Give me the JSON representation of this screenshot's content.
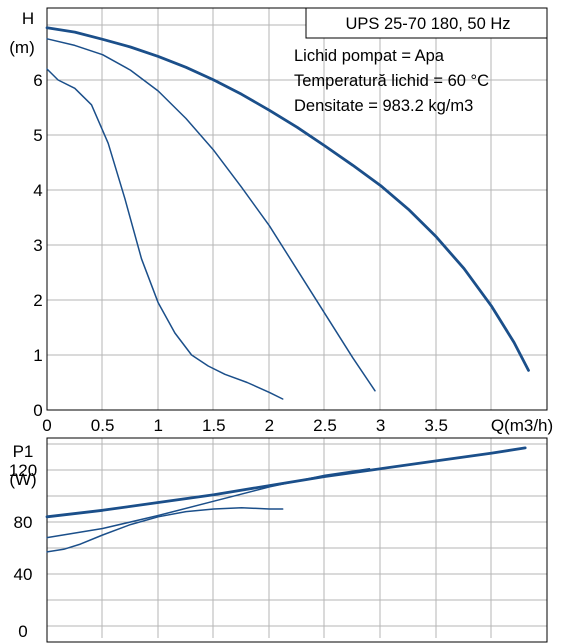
{
  "colors": {
    "curve": "#1b4f8a",
    "grid": "#b5b5b5",
    "frame": "#000000",
    "background": "#ffffff"
  },
  "chart_data": [
    {
      "type": "line",
      "ylabel_line1": "H",
      "ylabel_line2": "(m)",
      "xlabel": "Q(m3/h)",
      "xlim": [
        0,
        4.5
      ],
      "ylim": [
        0,
        7.3
      ],
      "grid": true,
      "x_ticks": [
        {
          "value": 0,
          "label": "0"
        },
        {
          "value": 0.5,
          "label": "0.5"
        },
        {
          "value": 1,
          "label": "1"
        },
        {
          "value": 1.5,
          "label": "1.5"
        },
        {
          "value": 2,
          "label": "2"
        },
        {
          "value": 2.5,
          "label": "2.5"
        },
        {
          "value": 3,
          "label": "3"
        },
        {
          "value": 3.5,
          "label": "3.5"
        }
      ],
      "y_ticks": [
        {
          "value": 0,
          "label": "0"
        },
        {
          "value": 1,
          "label": "1"
        },
        {
          "value": 2,
          "label": "2"
        },
        {
          "value": 3,
          "label": "3"
        },
        {
          "value": 4,
          "label": "4"
        },
        {
          "value": 5,
          "label": "5"
        },
        {
          "value": 6,
          "label": "6"
        }
      ],
      "info_box": {
        "title": "UPS 25-70 180, 50 Hz",
        "lines": [
          "Lichid pompat = Apa",
          "Temperatură lichid = 60 °C",
          "Densitate = 983.2 kg/m3"
        ]
      },
      "series": [
        {
          "emphasis": "thick",
          "x": [
            0,
            0.25,
            0.5,
            0.75,
            1.0,
            1.25,
            1.5,
            1.75,
            2.0,
            2.25,
            2.5,
            2.75,
            3.0,
            3.25,
            3.5,
            3.75,
            4.0,
            4.2,
            4.33
          ],
          "y": [
            6.95,
            6.87,
            6.74,
            6.6,
            6.43,
            6.23,
            6.0,
            5.74,
            5.45,
            5.14,
            4.8,
            4.45,
            4.08,
            3.65,
            3.15,
            2.57,
            1.88,
            1.23,
            0.72
          ]
        },
        {
          "emphasis": "normal",
          "x": [
            0,
            0.25,
            0.5,
            0.75,
            1.0,
            1.25,
            1.5,
            1.75,
            2.0,
            2.25,
            2.5,
            2.75,
            2.95
          ],
          "y": [
            6.75,
            6.63,
            6.46,
            6.18,
            5.8,
            5.3,
            4.72,
            4.05,
            3.35,
            2.55,
            1.75,
            0.95,
            0.35
          ]
        },
        {
          "emphasis": "normal",
          "x": [
            0,
            0.1,
            0.25,
            0.4,
            0.55,
            0.7,
            0.85,
            1.0,
            1.15,
            1.3,
            1.45,
            1.6,
            1.8,
            2.0,
            2.12
          ],
          "y": [
            6.2,
            6.0,
            5.85,
            5.55,
            4.85,
            3.85,
            2.75,
            1.95,
            1.4,
            1.0,
            0.8,
            0.65,
            0.5,
            0.32,
            0.2
          ]
        }
      ]
    },
    {
      "type": "line",
      "ylabel_line1": "P1",
      "ylabel_line2": "(W)",
      "xlim": [
        0,
        4.5
      ],
      "ylim": [
        0,
        160
      ],
      "grid": true,
      "y_ticks": [
        {
          "value": 0,
          "label": "0"
        },
        {
          "value": 40,
          "label": "40"
        },
        {
          "value": 80,
          "label": "80"
        },
        {
          "value": 120,
          "label": "120"
        }
      ],
      "series": [
        {
          "emphasis": "thick",
          "x": [
            0,
            0.5,
            1.0,
            1.5,
            2.0,
            2.5,
            3.0,
            3.5,
            4.0,
            4.3
          ],
          "y": [
            84,
            89,
            95,
            101,
            108,
            115,
            121,
            127,
            133,
            137
          ]
        },
        {
          "emphasis": "normal",
          "x": [
            0,
            0.5,
            1.0,
            1.5,
            2.0,
            2.5,
            2.9
          ],
          "y": [
            68,
            75,
            85,
            96,
            107,
            116,
            121
          ]
        },
        {
          "emphasis": "normal",
          "x": [
            0,
            0.15,
            0.3,
            0.5,
            0.75,
            1.0,
            1.25,
            1.5,
            1.75,
            2.0,
            2.12
          ],
          "y": [
            57,
            59,
            63,
            70,
            78,
            84,
            88,
            90,
            91,
            90,
            90
          ]
        }
      ]
    }
  ]
}
